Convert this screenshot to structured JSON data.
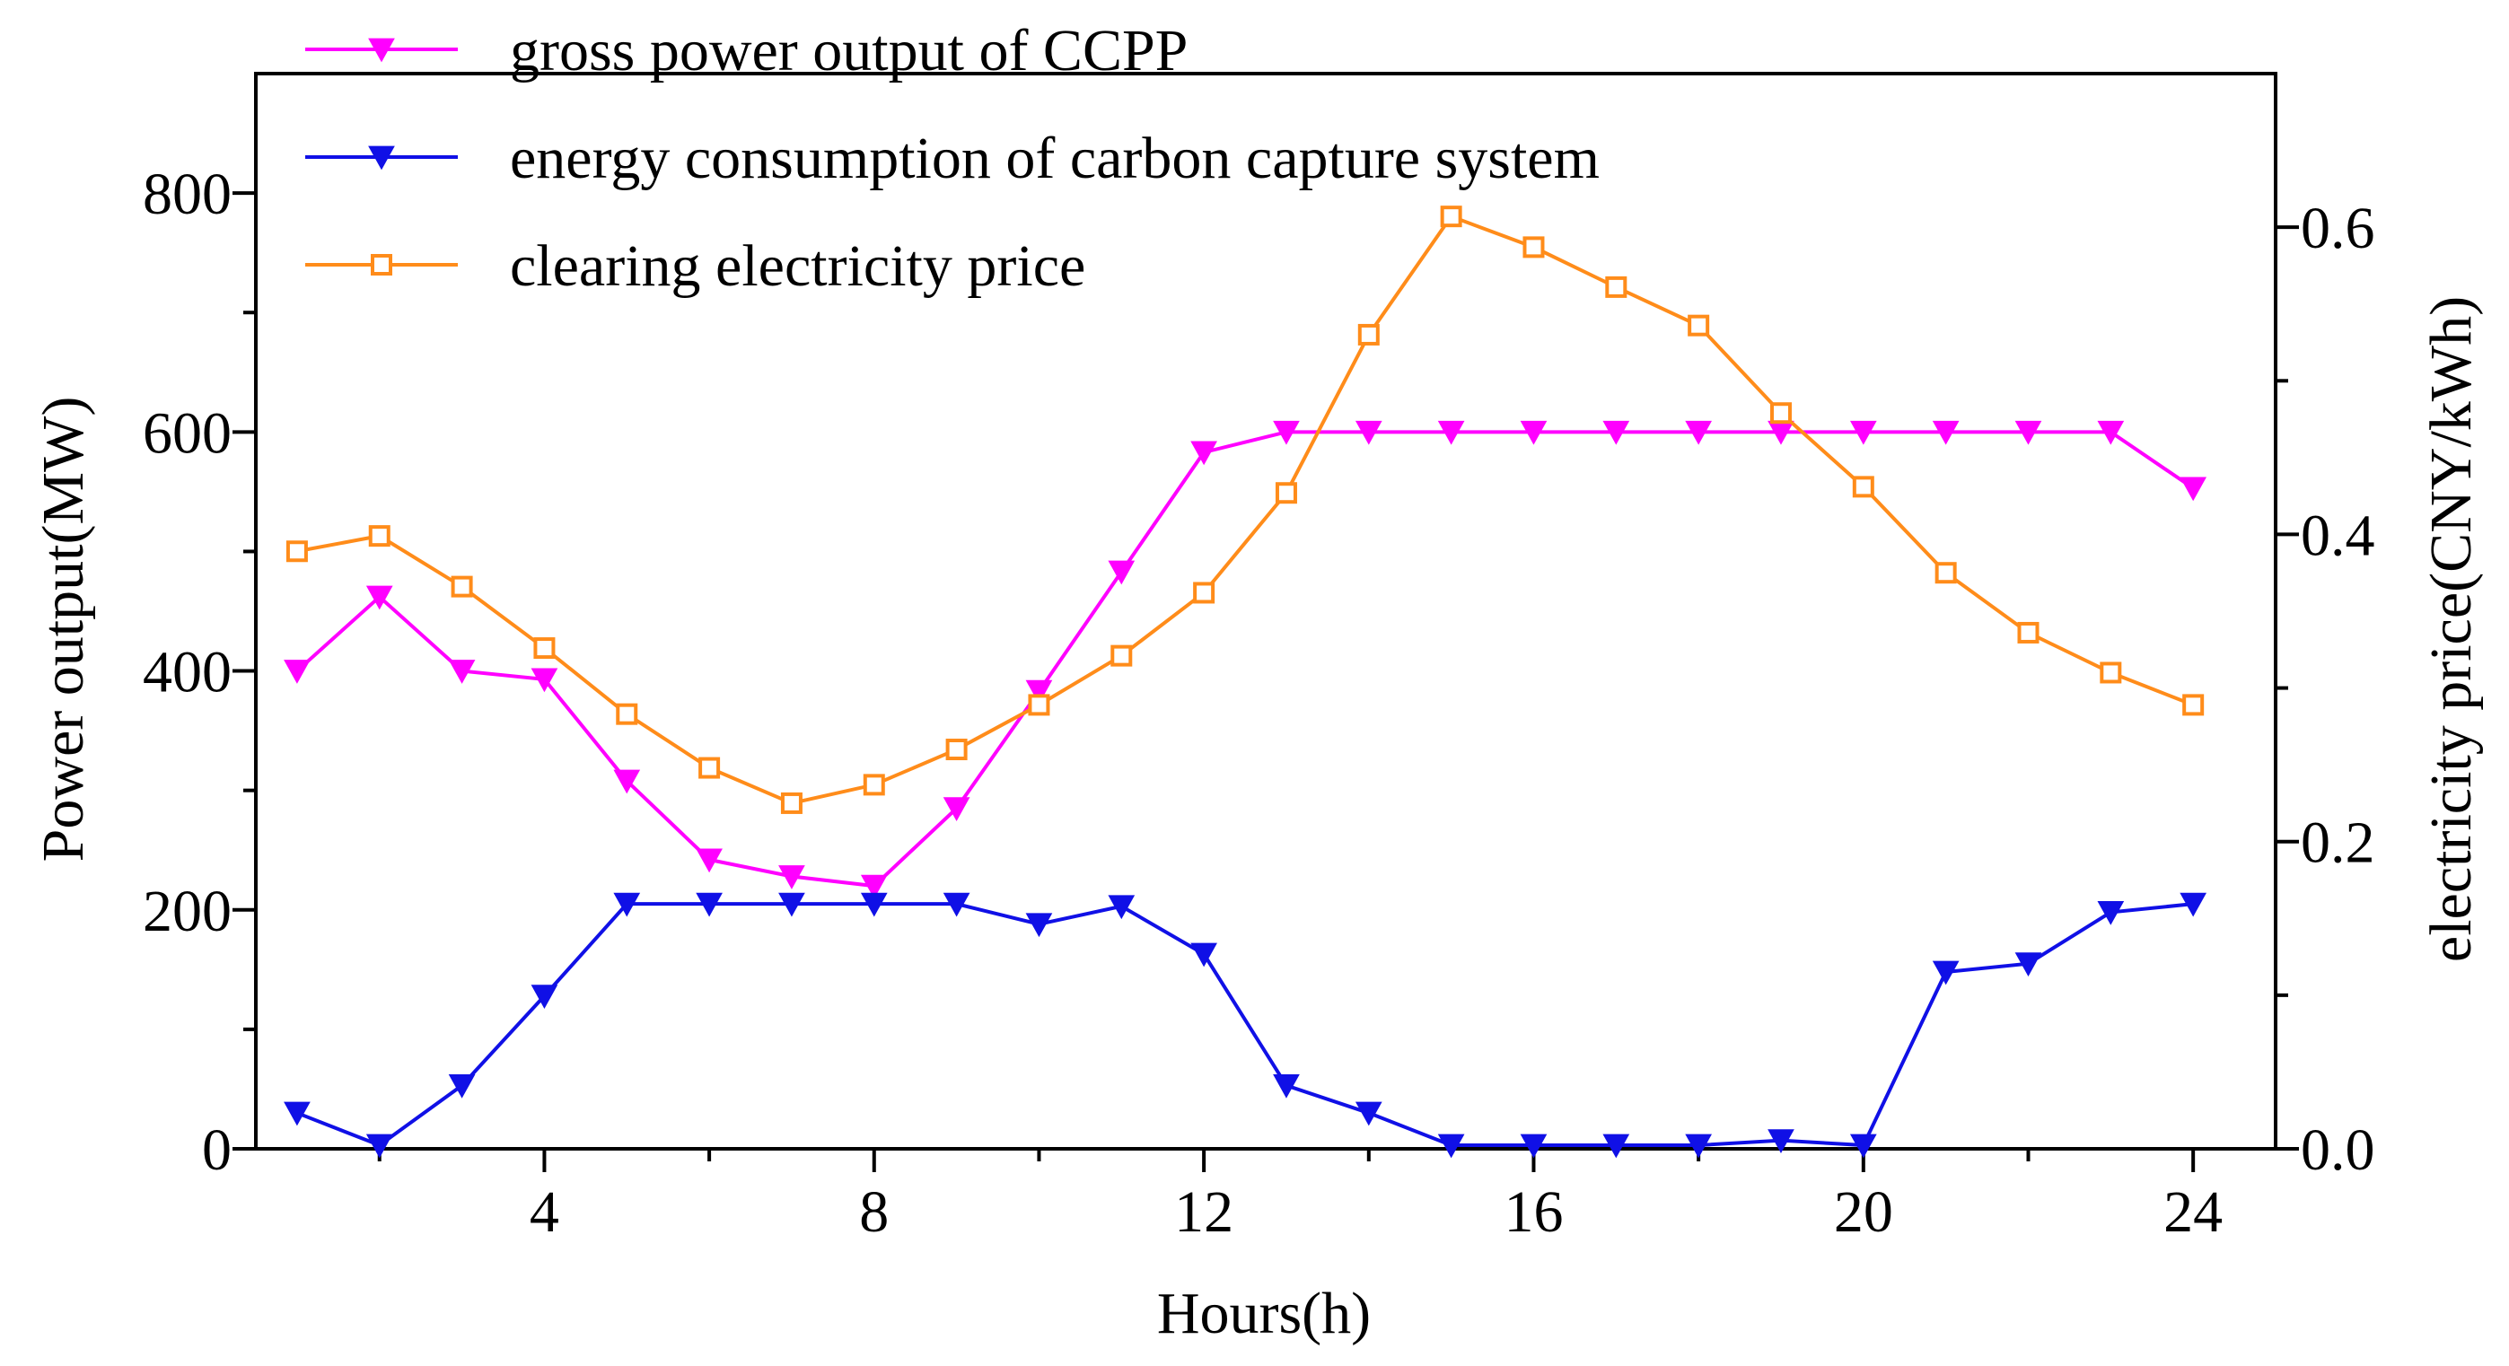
{
  "chart_data": {
    "type": "line",
    "title": "",
    "xlabel": "Hours(h)",
    "ylabel_left": "Power output(MW)",
    "ylabel_right": "electricity price(CNY/kWh)",
    "xlim": [
      0.5,
      25
    ],
    "ylim_left": [
      0,
      900
    ],
    "ylim_right": [
      0,
      0.7
    ],
    "x": [
      1,
      2,
      3,
      4,
      5,
      6,
      7,
      8,
      9,
      10,
      11,
      12,
      13,
      14,
      15,
      16,
      17,
      18,
      19,
      20,
      21,
      22,
      23,
      24
    ],
    "x_ticks": [
      "4",
      "8",
      "12",
      "16",
      "20",
      "24"
    ],
    "x_tick_values": [
      4,
      8,
      12,
      16,
      20,
      24
    ],
    "y_left_ticks": [
      "0",
      "200",
      "400",
      "600",
      "800"
    ],
    "y_left_tick_values": [
      0,
      200,
      400,
      600,
      800
    ],
    "y_left_minor": [
      100,
      300,
      500,
      700
    ],
    "y_right_ticks": [
      "0.0",
      "0.2",
      "0.4",
      "0.6"
    ],
    "y_right_tick_values": [
      0,
      0.2,
      0.4,
      0.6
    ],
    "y_right_minor": [
      0.1,
      0.3,
      0.5
    ],
    "legend_position": "top-left",
    "series": [
      {
        "name": "gross power output of CCPP",
        "axis": "left",
        "marker": "triangle-down",
        "color": "#ff00ff",
        "values": [
          400,
          462,
          400,
          393,
          308,
          242,
          228,
          220,
          285,
          383,
          483,
          583,
          600,
          600,
          600,
          600,
          600,
          600,
          600,
          600,
          600,
          600,
          600,
          553
        ]
      },
      {
        "name": "energy consumption of carbon capture system",
        "axis": "left",
        "marker": "triangle-down",
        "color": "#1010e6",
        "values": [
          30,
          3,
          53,
          128,
          205,
          205,
          205,
          205,
          205,
          188,
          203,
          163,
          53,
          30,
          3,
          3,
          3,
          3,
          7,
          3,
          148,
          155,
          198,
          205
        ]
      },
      {
        "name": "clearing electricity price",
        "axis": "right",
        "marker": "square-open",
        "color": "#ff8c1a",
        "values": [
          0.389,
          0.399,
          0.366,
          0.326,
          0.283,
          0.248,
          0.225,
          0.237,
          0.26,
          0.289,
          0.321,
          0.362,
          0.427,
          0.53,
          0.607,
          0.587,
          0.561,
          0.536,
          0.479,
          0.431,
          0.375,
          0.336,
          0.31,
          0.289
        ]
      }
    ]
  }
}
